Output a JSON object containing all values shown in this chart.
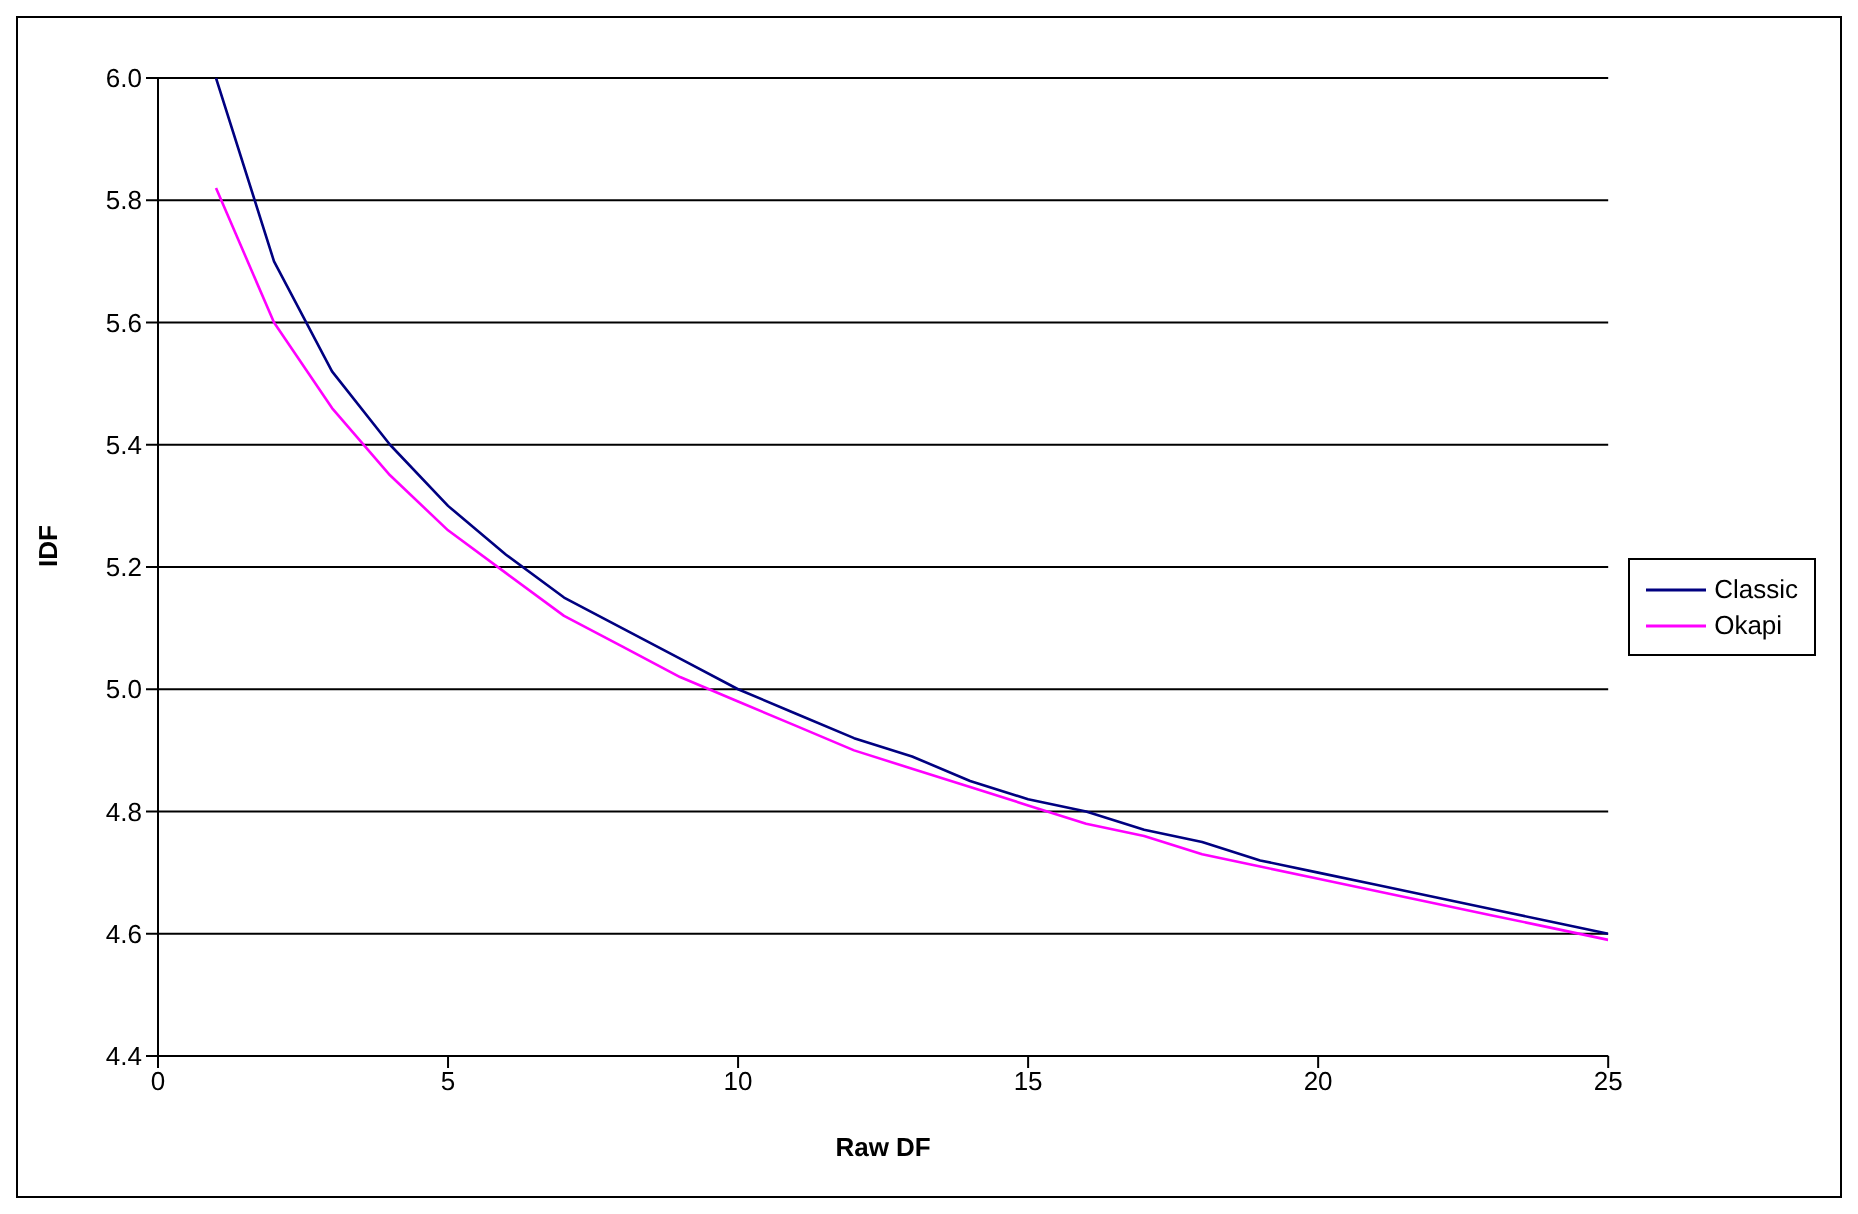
{
  "chart_data": {
    "type": "line",
    "xlabel": "Raw DF",
    "ylabel": "IDF",
    "x": [
      1,
      2,
      3,
      4,
      5,
      6,
      7,
      8,
      9,
      10,
      11,
      12,
      13,
      14,
      15,
      16,
      17,
      18,
      19,
      20,
      21,
      22,
      23,
      24,
      25
    ],
    "series": [
      {
        "name": "Classic",
        "color": "#000080",
        "values": [
          6.0,
          5.7,
          5.52,
          5.4,
          5.3,
          5.22,
          5.15,
          5.1,
          5.05,
          5.0,
          4.96,
          4.92,
          4.89,
          4.85,
          4.82,
          4.8,
          4.77,
          4.75,
          4.72,
          4.7,
          4.68,
          4.66,
          4.64,
          4.62,
          4.6
        ]
      },
      {
        "name": "Okapi",
        "color": "#ff00ff",
        "values": [
          5.82,
          5.6,
          5.46,
          5.35,
          5.26,
          5.19,
          5.12,
          5.07,
          5.02,
          4.98,
          4.94,
          4.9,
          4.87,
          4.84,
          4.81,
          4.78,
          4.76,
          4.73,
          4.71,
          4.69,
          4.67,
          4.65,
          4.63,
          4.61,
          4.59
        ]
      }
    ],
    "xlim": [
      0,
      25
    ],
    "xticks": [
      0,
      5,
      10,
      15,
      20,
      25
    ],
    "ylim": [
      4.4,
      6.0
    ],
    "yticks": [
      4.4,
      4.6,
      4.8,
      {
        "value": 5,
        "label": "5.0"
      },
      5.2,
      5.4,
      5.6,
      5.8,
      {
        "value": 6,
        "label": "6.0"
      }
    ],
    "grid": "y",
    "legend": "right"
  }
}
